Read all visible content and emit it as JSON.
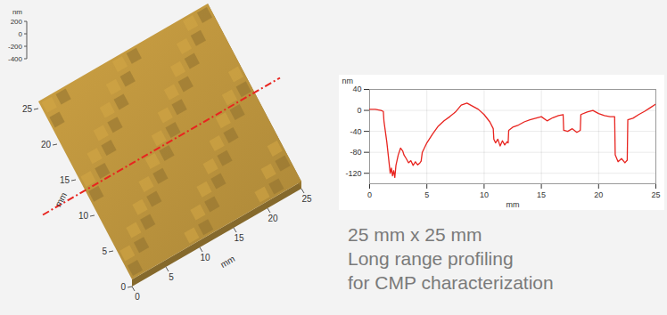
{
  "chart_data": [
    {
      "type": "surface",
      "x_label": "mm",
      "y_label": "mm",
      "z_label": "nm",
      "xlim": [
        0,
        25
      ],
      "ylim": [
        0,
        25
      ],
      "zlim": [
        -400,
        200
      ],
      "xticks": [
        0,
        5,
        10,
        15,
        20,
        25
      ],
      "yticks": [
        0,
        5,
        10,
        15,
        20,
        25
      ],
      "zticks": [
        200,
        0,
        -200,
        -400
      ],
      "color": "#b8913c"
    },
    {
      "type": "line",
      "x_label": "mm",
      "y_label": "nm",
      "xlim": [
        0,
        25
      ],
      "ylim": [
        -140,
        40
      ],
      "xticks": [
        0,
        5,
        10,
        15,
        20,
        25
      ],
      "yticks": [
        40,
        0,
        -40,
        -80,
        -120
      ],
      "grid": true,
      "color": "#e8241f",
      "x": [
        0,
        0.5,
        1.0,
        1.2,
        1.25,
        1.5,
        1.7,
        1.8,
        1.9,
        2.0,
        2.1,
        2.2,
        2.3,
        2.5,
        2.7,
        2.9,
        3.0,
        3.2,
        3.4,
        3.6,
        3.8,
        4.0,
        4.2,
        4.4,
        4.5,
        4.6,
        5.0,
        5.5,
        6.0,
        6.5,
        7.0,
        7.5,
        8.0,
        8.5,
        9.0,
        9.5,
        10.0,
        10.5,
        10.8,
        10.85,
        11.0,
        11.2,
        11.4,
        11.6,
        11.8,
        12.0,
        12.1,
        12.15,
        12.5,
        13.0,
        13.5,
        14.0,
        14.5,
        15.0,
        15.5,
        16.0,
        16.5,
        16.9,
        16.95,
        17.3,
        17.7,
        18.1,
        18.4,
        18.45,
        19.0,
        19.5,
        20.0,
        20.5,
        21.0,
        21.4,
        21.45,
        21.7,
        22.0,
        22.3,
        22.5,
        22.55,
        23.0,
        23.5,
        24.0,
        24.5,
        25.0
      ],
      "values": [
        2,
        2,
        0,
        -2,
        -20,
        -60,
        -100,
        -120,
        -110,
        -125,
        -115,
        -128,
        -105,
        -85,
        -72,
        -78,
        -85,
        -92,
        -100,
        -96,
        -105,
        -98,
        -104,
        -100,
        -97,
        -80,
        -62,
        -45,
        -30,
        -20,
        -12,
        -3,
        10,
        14,
        8,
        2,
        -8,
        -22,
        -35,
        -55,
        -62,
        -55,
        -68,
        -58,
        -66,
        -60,
        -62,
        -38,
        -32,
        -28,
        -22,
        -18,
        -15,
        -12,
        -20,
        -14,
        -10,
        -8,
        -38,
        -40,
        -35,
        -42,
        -38,
        -8,
        -3,
        0,
        -6,
        -10,
        -12,
        -12,
        -85,
        -98,
        -92,
        -100,
        -95,
        -18,
        -15,
        -8,
        -2,
        5,
        12
      ]
    }
  ],
  "caption": [
    "25 mm x 25 mm",
    "Long range profiling",
    "for CMP characterization"
  ]
}
